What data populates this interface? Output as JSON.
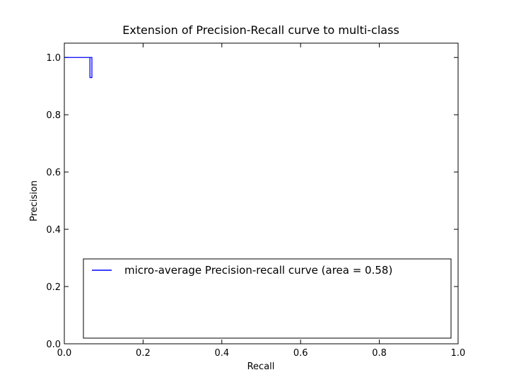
{
  "chart_data": {
    "type": "line",
    "title": "Extension of Precision-Recall curve to multi-class",
    "xlabel": "Recall",
    "ylabel": "Precision",
    "xlim": [
      0.0,
      1.0
    ],
    "ylim": [
      0.0,
      1.05
    ],
    "xticks": [
      "0.0",
      "0.2",
      "0.4",
      "0.6",
      "0.8",
      "1.0"
    ],
    "yticks": [
      "0.0",
      "0.2",
      "0.4",
      "0.6",
      "0.8",
      "1.0"
    ],
    "grid": false,
    "legend_position": "lower-right",
    "series": [
      {
        "name": "micro-average Precision-recall curve (area = 0.58)",
        "color": "#0000ff",
        "points": [
          [
            0,
            1.0
          ],
          [
            0.065,
            1.0
          ],
          [
            0.065,
            0.93
          ],
          [
            0.07,
            0.93
          ],
          [
            0.07,
            1.0
          ],
          [
            0.065,
            1.0
          ],
          [
            0.065,
            0.93
          ],
          [
            0.065,
            1.0
          ],
          [
            0.065,
            1.0
          ],
          [
            0.065,
            1.0
          ],
          [
            0.065,
            1.0
          ],
          [
            0.065,
            1.0
          ],
          [
            0.065,
            1.0
          ],
          [
            0.065,
            1.0
          ],
          [
            0.065,
            1.0
          ],
          [
            0.065,
            1.0
          ],
          [
            0.065,
            1.0
          ],
          [
            0.065,
            1.0
          ],
          [
            0.065,
            1.0
          ],
          [
            0.065,
            1.0
          ],
          [
            0.065,
            1.0
          ],
          [
            0.065,
            1.0
          ],
          [
            0.065,
            1.0
          ],
          [
            0.065,
            1.0
          ],
          [
            0.065,
            1.0
          ],
          [
            0.065,
            1.0
          ],
          [
            0.065,
            1.0
          ],
          [
            0.065,
            1.0
          ],
          [
            0.065,
            1.0
          ],
          [
            0.065,
            1.0
          ],
          [
            0.065,
            1.0
          ],
          [
            0.065,
            1.0
          ],
          [
            0.065,
            1.0
          ],
          [
            0.065,
            1.0
          ],
          [
            0.065,
            1.0
          ],
          [
            0.065,
            1.0
          ],
          [
            0.065,
            1.0
          ],
          [
            0.065,
            1.0
          ],
          [
            0.065,
            1.0
          ],
          [
            0.065,
            1.0
          ],
          [
            0.065,
            1.0
          ],
          [
            0.065,
            1.0
          ],
          [
            0.065,
            1.0
          ],
          [
            0.065,
            1.0
          ],
          [
            0.065,
            1.0
          ],
          [
            0.065,
            1.0
          ],
          [
            0.065,
            1.0
          ],
          [
            0.065,
            1.0
          ],
          [
            0.065,
            1.0
          ],
          [
            0.065,
            1.0
          ],
          [
            0.065,
            1.0
          ],
          [
            0.065,
            1.0
          ],
          [
            0.065,
            1.0
          ],
          [
            0.065,
            1.0
          ],
          [
            0.065,
            1.0
          ],
          [
            0.065,
            1.0
          ],
          [
            0.065,
            1.0
          ],
          [
            0.065,
            1.0
          ],
          [
            0.065,
            1.0
          ],
          [
            0.065,
            1.0
          ],
          [
            0.065,
            1.0
          ],
          [
            0.065,
            1.0
          ],
          [
            0.065,
            1.0
          ],
          [
            0.065,
            1.0
          ],
          [
            0.065,
            1.0
          ],
          [
            0.065,
            1.0
          ],
          [
            0.065,
            1.0
          ],
          [
            0.065,
            1.0
          ],
          [
            0.065,
            1.0
          ],
          [
            0.065,
            1.0
          ],
          [
            0.065,
            1.0
          ],
          [
            0.065,
            1.0
          ],
          [
            0.065,
            1.0
          ],
          [
            0.065,
            1.0
          ],
          [
            0.065,
            1.0
          ],
          [
            0.065,
            1.0
          ],
          [
            0.065,
            1.0
          ],
          [
            0.065,
            1.0
          ],
          [
            0.065,
            1.0
          ],
          [
            0.065,
            1.0
          ],
          [
            0.065,
            1.0
          ],
          [
            0.065,
            1.0
          ],
          [
            0.065,
            1.0
          ],
          [
            0.065,
            1.0
          ],
          [
            0.065,
            1.0
          ],
          [
            0.065,
            1.0
          ],
          [
            0.065,
            1.0
          ],
          [
            0.065,
            1.0
          ],
          [
            0.065,
            1.0
          ],
          [
            0.065,
            1.0
          ],
          [
            0.065,
            1.0
          ],
          [
            0.065,
            1.0
          ],
          [
            0.065,
            1.0
          ],
          [
            0.065,
            1.0
          ],
          [
            0.065,
            1.0
          ],
          [
            0.065,
            1.0
          ],
          [
            0.065,
            1.0
          ],
          [
            0.065,
            1.0
          ],
          [
            0.065,
            1.0
          ],
          [
            0.065,
            1.0
          ],
          [
            0.065,
            1.0
          ],
          [
            0.065,
            1.0
          ],
          [
            0.065,
            1.0
          ],
          [
            0.065,
            1.0
          ],
          [
            0.065,
            1.0
          ],
          [
            0.065,
            1.0
          ],
          [
            0.065,
            1.0
          ],
          [
            0.065,
            1.0
          ],
          [
            0.065,
            1.0
          ],
          [
            0.065,
            1.0
          ],
          [
            0.065,
            1.0
          ],
          [
            0.065,
            1.0
          ],
          [
            0.065,
            1.0
          ],
          [
            0.065,
            1.0
          ],
          [
            0.065,
            1.0
          ],
          [
            0.065,
            1.0
          ],
          [
            0.065,
            1.0
          ],
          [
            0.065,
            1.0
          ],
          [
            0.065,
            1.0
          ],
          [
            0.065,
            1.0
          ],
          [
            0.065,
            1.0
          ],
          [
            0.065,
            1.0
          ],
          [
            0.065,
            1.0
          ],
          [
            0.065,
            1.0
          ],
          [
            0.065,
            1.0
          ],
          [
            0.065,
            1.0
          ],
          [
            0.065,
            1.0
          ],
          [
            0.065,
            1.0
          ],
          [
            0.065,
            1.0
          ],
          [
            0.065,
            1.0
          ],
          [
            0.065,
            1.0
          ],
          [
            0.065,
            1.0
          ],
          [
            0.065,
            1.0
          ],
          [
            0.065,
            1.0
          ],
          [
            0.065,
            1.0
          ],
          [
            0.065,
            1.0
          ],
          [
            0.065,
            1.0
          ],
          [
            0.065,
            1.0
          ],
          [
            0.065,
            1.0
          ],
          [
            0.065,
            1.0
          ],
          [
            0.065,
            1.0
          ],
          [
            0.065,
            1.0
          ],
          [
            0.065,
            1.0
          ],
          [
            0.065,
            1.0
          ],
          [
            0.065,
            1.0
          ],
          [
            0.065,
            1.0
          ],
          [
            0.065,
            1.0
          ],
          [
            0.065,
            1.0
          ],
          [
            0.065,
            1.0
          ],
          [
            0.065,
            1.0
          ],
          [
            0.065,
            1.0
          ],
          [
            0.065,
            1.0
          ],
          [
            0.065,
            1.0
          ],
          [
            0.065,
            1.0
          ],
          [
            0.065,
            1.0
          ],
          [
            0.065,
            1.0
          ],
          [
            0.065,
            1.0
          ],
          [
            0.065,
            1.0
          ],
          [
            0.065,
            1.0
          ],
          [
            0.065,
            1.0
          ],
          [
            0.065,
            1.0
          ],
          [
            0.065,
            1.0
          ],
          [
            0.065,
            1.0
          ],
          [
            0.065,
            1.0
          ],
          [
            0.065,
            1.0
          ],
          [
            0.065,
            1.0
          ],
          [
            0.065,
            1.0
          ],
          [
            0.065,
            1.0
          ],
          [
            0.065,
            1.0
          ],
          [
            0.065,
            1.0
          ],
          [
            0.065,
            1.0
          ],
          [
            0.065,
            1.0
          ],
          [
            0.065,
            1.0
          ],
          [
            0.065,
            1.0
          ],
          [
            0.065,
            1.0
          ],
          [
            0.065,
            1.0
          ],
          [
            0.065,
            1.0
          ],
          [
            0.065,
            1.0
          ],
          [
            0.065,
            1.0
          ],
          [
            0.065,
            1.0
          ],
          [
            0.065,
            1.0
          ],
          [
            0.065,
            1.0
          ],
          [
            0.065,
            1.0
          ],
          [
            0.065,
            1.0
          ],
          [
            0.065,
            1.0
          ],
          [
            0.065,
            1.0
          ],
          [
            0.065,
            1.0
          ],
          [
            0.065,
            1.0
          ],
          [
            0.065,
            1.0
          ],
          [
            0.065,
            1.0
          ],
          [
            0.065,
            1.0
          ],
          [
            0.065,
            1.0
          ],
          [
            0.065,
            1.0
          ],
          [
            0.065,
            1.0
          ],
          [
            0.065,
            1.0
          ],
          [
            0.065,
            1.0
          ],
          [
            0.065,
            1.0
          ],
          [
            0.065,
            1.0
          ],
          [
            0.065,
            1.0
          ],
          [
            0.065,
            1.0
          ],
          [
            0.065,
            1.0
          ],
          [
            0.065,
            1.0
          ],
          [
            0.065,
            1.0
          ],
          [
            0.065,
            1.0
          ],
          [
            0.065,
            1.0
          ],
          [
            0.065,
            1.0
          ],
          [
            0.065,
            1.0
          ],
          [
            0.065,
            1.0
          ],
          [
            0.065,
            1.0
          ],
          [
            0.065,
            1.0
          ],
          [
            0.065,
            1.0
          ],
          [
            0.065,
            1.0
          ],
          [
            0.065,
            1.0
          ],
          [
            0.065,
            1.0
          ],
          [
            0.065,
            1.0
          ],
          [
            0.065,
            1.0
          ],
          [
            0.065,
            1.0
          ],
          [
            0.065,
            1.0
          ],
          [
            0.065,
            1.0
          ],
          [
            0.065,
            1.0
          ],
          [
            0.065,
            1.0
          ],
          [
            0.065,
            1.0
          ],
          [
            0.065,
            1.0
          ],
          [
            0.065,
            1.0
          ],
          [
            0.065,
            1.0
          ],
          [
            0.065,
            1.0
          ],
          [
            0.065,
            1.0
          ],
          [
            0.065,
            1.0
          ],
          [
            0.065,
            1.0
          ],
          [
            0.065,
            1.0
          ],
          [
            0.065,
            1.0
          ],
          [
            0.065,
            1.0
          ],
          [
            0.065,
            1.0
          ],
          [
            0.065,
            1.0
          ],
          [
            0.065,
            1.0
          ],
          [
            0.065,
            1.0
          ],
          [
            0.065,
            1.0
          ],
          [
            0.065,
            1.0
          ],
          [
            0.065,
            1.0
          ],
          [
            0.065,
            1.0
          ],
          [
            0.065,
            1.0
          ],
          [
            0.065,
            1.0
          ],
          [
            0.065,
            1.0
          ],
          [
            0.065,
            1.0
          ],
          [
            0.065,
            1.0
          ],
          [
            0.065,
            1.0
          ],
          [
            0.065,
            1.0
          ],
          [
            0.065,
            1.0
          ],
          [
            0.065,
            1.0
          ],
          [
            0.065,
            1.0
          ],
          [
            0.065,
            1.0
          ],
          [
            0.065,
            1.0
          ],
          [
            0.065,
            1.0
          ],
          [
            0.065,
            1.0
          ],
          [
            0.065,
            1.0
          ],
          [
            0.065,
            1.0
          ],
          [
            0.065,
            1.0
          ],
          [
            0.065,
            1.0
          ],
          [
            0.065,
            1.0
          ],
          [
            0.065,
            1.0
          ],
          [
            0.065,
            1.0
          ],
          [
            0.065,
            1.0
          ],
          [
            0.065,
            1.0
          ],
          [
            0.065,
            1.0
          ],
          [
            0.065,
            1.0
          ],
          [
            0.065,
            1.0
          ],
          [
            0.065,
            1.0
          ],
          [
            0.065,
            1.0
          ],
          [
            0.065,
            1.0
          ],
          [
            0.065,
            1.0
          ],
          [
            0.065,
            1.0
          ],
          [
            0.065,
            1.0
          ],
          [
            0.065,
            1.0
          ],
          [
            0.065,
            1.0
          ],
          [
            0.065,
            1.0
          ],
          [
            0.065,
            1.0
          ],
          [
            0.065,
            1.0
          ],
          [
            0.065,
            1.0
          ],
          [
            0.065,
            1.0
          ],
          [
            0.065,
            1.0
          ],
          [
            0.065,
            1.0
          ],
          [
            0.065,
            1.0
          ],
          [
            0.065,
            1.0
          ],
          [
            0.065,
            1.0
          ],
          [
            0.065,
            1.0
          ],
          [
            0.065,
            1.0
          ],
          [
            0.065,
            1.0
          ],
          [
            0.065,
            1.0
          ],
          [
            0.065,
            1.0
          ]
        ]
      }
    ]
  }
}
